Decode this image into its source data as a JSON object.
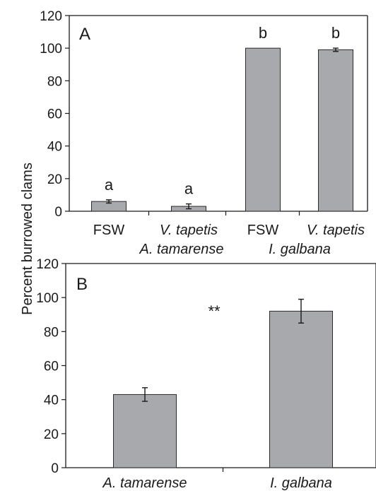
{
  "ylabel": "Percent burrowed clams",
  "colors": {
    "bar": "#a7a9ac",
    "bar_edge": "#2b2b2b",
    "axis": "#1a1a1a"
  },
  "chart_data": [
    {
      "panel": "A",
      "type": "bar",
      "ylim": [
        0,
        120
      ],
      "yticks": [
        0,
        20,
        40,
        60,
        80,
        100,
        120
      ],
      "categories": [
        "FSW",
        "V. tapetis",
        "FSW",
        "V. tapetis"
      ],
      "groups": [
        {
          "label": "A. tamarense",
          "categories": [
            0,
            1
          ]
        },
        {
          "label": "I. galbana",
          "categories": [
            2,
            3
          ]
        }
      ],
      "values": [
        6,
        3,
        100,
        99
      ],
      "errors": [
        1,
        1.5,
        0,
        1
      ],
      "annotations": [
        "a",
        "a",
        "b",
        "b"
      ],
      "grid": false
    },
    {
      "panel": "B",
      "type": "bar",
      "ylim": [
        0,
        120
      ],
      "yticks": [
        0,
        20,
        40,
        60,
        80,
        100,
        120
      ],
      "categories": [
        "A. tamarense",
        "I. galbana"
      ],
      "values": [
        43,
        92
      ],
      "errors": [
        4,
        7
      ],
      "annotations": [
        "**"
      ],
      "grid": false
    }
  ]
}
